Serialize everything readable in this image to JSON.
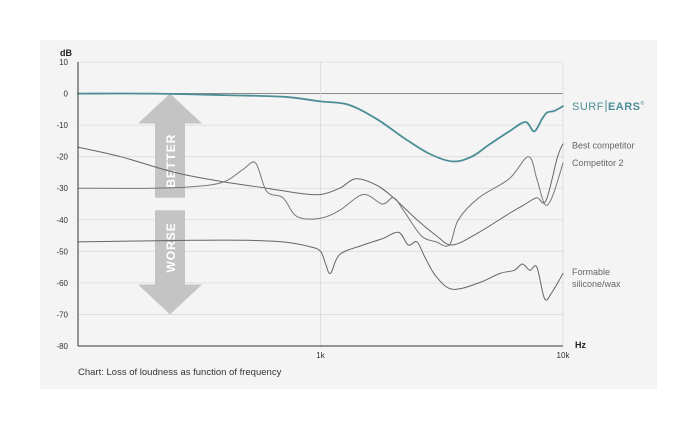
{
  "chart_data": {
    "type": "line",
    "title": "",
    "caption": "Chart: Loss of loudness as function of frequency",
    "ylabel": "dB",
    "xlabel": "Hz",
    "x_scale": "log",
    "xlim": [
      100,
      10000
    ],
    "ylim": [
      -80,
      10
    ],
    "y_ticks": [
      10,
      0,
      -10,
      -20,
      -30,
      -40,
      -50,
      -60,
      -70,
      -80
    ],
    "x_ticks": [
      {
        "value": 1000,
        "label": "1k"
      },
      {
        "value": 10000,
        "label": "10k"
      }
    ],
    "grid": true,
    "legend": "labels at right end of lines",
    "annotations": [
      {
        "text": "BETTER",
        "direction": "up",
        "y_top": 0,
        "y_bottom": -33
      },
      {
        "text": "WORSE",
        "direction": "down",
        "y_top": -37,
        "y_bottom": -70
      }
    ],
    "series": [
      {
        "name": "SURF|EARS",
        "brand_parts": [
          "SURF",
          "EARS",
          "®"
        ],
        "color": "#4d8e96",
        "x": [
          100,
          200,
          400,
          700,
          1000,
          1300,
          1700,
          2200,
          2800,
          3500,
          4200,
          5000,
          6000,
          7000,
          7600,
          8200,
          8600,
          9200,
          10000
        ],
        "y": [
          0,
          0,
          -0.5,
          -1,
          -2.5,
          -3.5,
          -8,
          -14,
          -19,
          -21.5,
          -20,
          -16,
          -12,
          -9,
          -12,
          -8,
          -6,
          -5.5,
          -4
        ]
      },
      {
        "name": "Best competitor",
        "color": "#666666",
        "x": [
          100,
          150,
          250,
          400,
          600,
          800,
          1000,
          1200,
          1400,
          1700,
          2000,
          2500,
          3000,
          3500,
          4500,
          6000,
          7000,
          7800,
          8500,
          9500,
          10000
        ],
        "y": [
          -17,
          -20,
          -25,
          -28,
          -30,
          -31.5,
          -32,
          -30,
          -27,
          -29,
          -33,
          -40,
          -45,
          -48,
          -44,
          -38,
          -35,
          -33,
          -34,
          -20,
          -16
        ]
      },
      {
        "name": "Competitor 2",
        "color": "#777777",
        "x": [
          100,
          200,
          300,
          400,
          480,
          540,
          600,
          700,
          800,
          1000,
          1200,
          1500,
          1800,
          2000,
          2200,
          2600,
          3000,
          3400,
          3700,
          4500,
          6000,
          7200,
          7800,
          8400,
          9000,
          10000
        ],
        "y": [
          -30,
          -30,
          -29.5,
          -28,
          -24,
          -22,
          -31,
          -33,
          -39,
          -39.5,
          -37,
          -32,
          -35,
          -33,
          -37,
          -45,
          -47,
          -48,
          -40,
          -33,
          -27,
          -20,
          -27,
          -35,
          -33,
          -22
        ]
      },
      {
        "name": "Formable silicone/wax",
        "label_lines": [
          "Formable",
          "silicone/wax"
        ],
        "color": "#666666",
        "x": [
          100,
          300,
          500,
          700,
          900,
          1000,
          1050,
          1100,
          1200,
          1500,
          1800,
          2100,
          2300,
          2500,
          2700,
          3000,
          3500,
          4500,
          5500,
          6300,
          6800,
          7300,
          7800,
          8400,
          9000,
          10000
        ],
        "y": [
          -47,
          -46.5,
          -46.5,
          -47,
          -48.5,
          -50,
          -54,
          -57,
          -51,
          -48,
          -46,
          -44,
          -48,
          -47,
          -52,
          -58,
          -62,
          -60,
          -57,
          -56,
          -54,
          -56,
          -55,
          -65,
          -63,
          -57
        ]
      }
    ]
  }
}
